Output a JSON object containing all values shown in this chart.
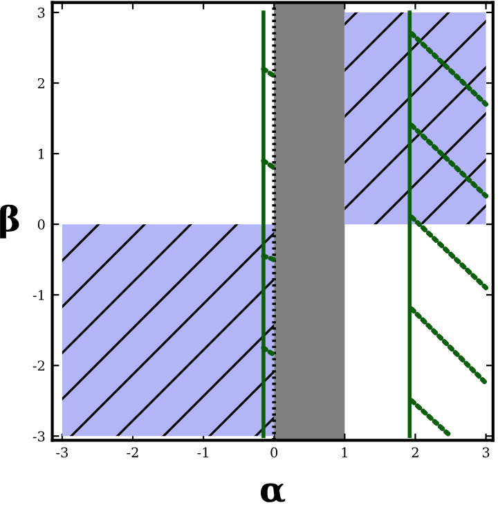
{
  "chart_data": {
    "type": "area",
    "xlabel": "α",
    "ylabel": "β",
    "xlim": [
      -3.14,
      3.1
    ],
    "ylim": [
      -3.06,
      3.14
    ],
    "xticks": [
      -3,
      -2,
      -1,
      0,
      1,
      2,
      3
    ],
    "yticks": [
      -3,
      -2,
      -1,
      0,
      1,
      2,
      3
    ],
    "grid": false,
    "bands": [
      {
        "axis": "x",
        "from": 0,
        "to": 1,
        "color": "#808080"
      }
    ],
    "ref_lines": [
      {
        "axis": "x",
        "value": 0,
        "color": "#000000",
        "line_style": "dotted"
      }
    ],
    "series": [
      {
        "color": "#b4b4f8",
        "x": [
          -3,
          0
        ],
        "values": [
          -3,
          -3
        ]
      },
      {
        "color": "#b4b4f8",
        "x": [
          1,
          3
        ],
        "values": [
          3,
          3
        ]
      },
      {
        "type": "line",
        "color": "#0b5e0b",
        "line_style": "solid",
        "x": [
          -0.15,
          -0.15
        ],
        "values": [
          -3,
          3
        ]
      },
      {
        "type": "line",
        "color": "#0b5e0b",
        "line_style": "solid",
        "x": [
          1.92,
          1.92
        ],
        "values": [
          -3,
          3
        ]
      },
      {
        "type": "line",
        "color": "#0b5e0b",
        "line_style": "dotted",
        "x": [
          1.95,
          3
        ],
        "values": [
          2.7,
          1.7
        ]
      },
      {
        "type": "line",
        "color": "#0b5e0b",
        "line_style": "dotted",
        "x": [
          1.95,
          3
        ],
        "values": [
          1.4,
          0.4
        ]
      },
      {
        "type": "line",
        "color": "#0b5e0b",
        "line_style": "dotted",
        "x": [
          1.95,
          3
        ],
        "values": [
          0.1,
          -0.9
        ]
      },
      {
        "type": "line",
        "color": "#0b5e0b",
        "line_style": "dotted",
        "x": [
          1.95,
          3
        ],
        "values": [
          -1.2,
          -2.25
        ]
      },
      {
        "type": "line",
        "color": "#0b5e0b",
        "line_style": "dotted",
        "x": [
          1.95,
          2.5
        ],
        "values": [
          -2.5,
          -3
        ]
      },
      {
        "type": "line",
        "color": "#0b5e0b",
        "line_style": "dotted",
        "x": [
          -0.15,
          0
        ],
        "values": [
          2.2,
          2.1
        ]
      },
      {
        "type": "line",
        "color": "#0b5e0b",
        "line_style": "dotted",
        "x": [
          -0.15,
          0
        ],
        "values": [
          0.9,
          0.8
        ]
      },
      {
        "type": "line",
        "color": "#0b5e0b",
        "line_style": "dotted",
        "x": [
          -0.15,
          0
        ],
        "values": [
          -0.45,
          -0.5
        ]
      },
      {
        "type": "line",
        "color": "#0b5e0b",
        "line_style": "dotted",
        "x": [
          -0.15,
          0
        ],
        "values": [
          -1.75,
          -1.85
        ]
      }
    ]
  }
}
